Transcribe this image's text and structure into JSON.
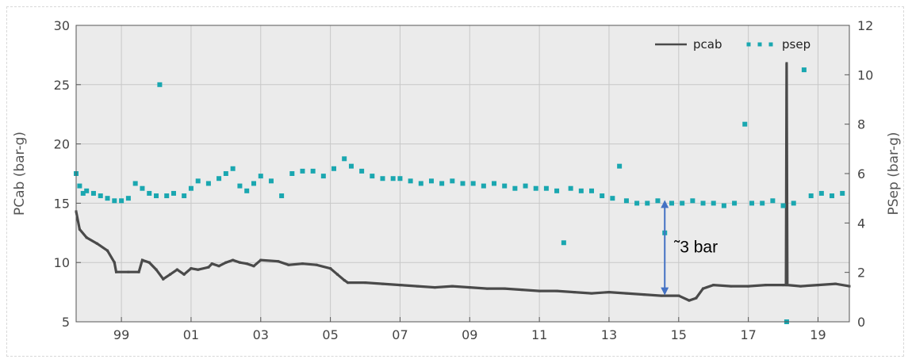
{
  "chart_data": {
    "type": "line",
    "xlabel": "",
    "x_tick_labels": [
      "99",
      "01",
      "03",
      "05",
      "07",
      "09",
      "11",
      "13",
      "15",
      "17",
      "19"
    ],
    "x_tick_years": [
      1999,
      2001,
      2003,
      2005,
      2007,
      2009,
      2011,
      2013,
      2015,
      2017,
      2019
    ],
    "xlim": [
      1997.7,
      2019.9
    ],
    "ylabel_left": "PCab (bar-g)",
    "ylim_left": [
      5,
      30
    ],
    "yticks_left": [
      "5",
      "10",
      "15",
      "20",
      "25",
      "30"
    ],
    "ylabel_right": "PSep (bar-g)",
    "ylim_right": [
      0,
      12
    ],
    "yticks_right": [
      "0",
      "2",
      "4",
      "6",
      "8",
      "10",
      "12"
    ],
    "grid": true,
    "legend_placement": "top-right",
    "colors": {
      "pcab": "#4a4a4a",
      "psep": "#1aa7b0",
      "annotation": "#4472c4"
    },
    "series": [
      {
        "name": "pcab",
        "axis": "left",
        "style": "line",
        "points": [
          [
            1997.7,
            14.3
          ],
          [
            1997.8,
            12.8
          ],
          [
            1998.0,
            12.1
          ],
          [
            1998.3,
            11.6
          ],
          [
            1998.6,
            11.0
          ],
          [
            1998.8,
            10.0
          ],
          [
            1998.85,
            9.2
          ],
          [
            1999.2,
            9.2
          ],
          [
            1999.5,
            9.2
          ],
          [
            1999.6,
            10.2
          ],
          [
            1999.8,
            10.0
          ],
          [
            2000.0,
            9.4
          ],
          [
            2000.2,
            8.6
          ],
          [
            2000.4,
            9.0
          ],
          [
            2000.6,
            9.4
          ],
          [
            2000.8,
            9.0
          ],
          [
            2001.0,
            9.5
          ],
          [
            2001.2,
            9.4
          ],
          [
            2001.5,
            9.6
          ],
          [
            2001.6,
            9.9
          ],
          [
            2001.8,
            9.7
          ],
          [
            2002.0,
            10.0
          ],
          [
            2002.2,
            10.2
          ],
          [
            2002.4,
            10.0
          ],
          [
            2002.6,
            9.9
          ],
          [
            2002.8,
            9.7
          ],
          [
            2003.0,
            10.2
          ],
          [
            2003.5,
            10.1
          ],
          [
            2003.8,
            9.8
          ],
          [
            2004.2,
            9.9
          ],
          [
            2004.6,
            9.8
          ],
          [
            2005.0,
            9.5
          ],
          [
            2005.2,
            9.0
          ],
          [
            2005.4,
            8.5
          ],
          [
            2005.5,
            8.3
          ],
          [
            2006.0,
            8.3
          ],
          [
            2006.5,
            8.2
          ],
          [
            2007.0,
            8.1
          ],
          [
            2007.5,
            8.0
          ],
          [
            2008.0,
            7.9
          ],
          [
            2008.5,
            8.0
          ],
          [
            2009.0,
            7.9
          ],
          [
            2009.5,
            7.8
          ],
          [
            2010.0,
            7.8
          ],
          [
            2010.5,
            7.7
          ],
          [
            2011.0,
            7.6
          ],
          [
            2011.5,
            7.6
          ],
          [
            2012.0,
            7.5
          ],
          [
            2012.5,
            7.4
          ],
          [
            2013.0,
            7.5
          ],
          [
            2013.5,
            7.4
          ],
          [
            2014.0,
            7.3
          ],
          [
            2014.5,
            7.2
          ],
          [
            2015.0,
            7.2
          ],
          [
            2015.3,
            6.8
          ],
          [
            2015.5,
            7.0
          ],
          [
            2015.7,
            7.8
          ],
          [
            2016.0,
            8.1
          ],
          [
            2016.5,
            8.0
          ],
          [
            2017.0,
            8.0
          ],
          [
            2017.5,
            8.1
          ],
          [
            2018.0,
            8.1
          ],
          [
            2018.08,
            8.1
          ],
          [
            2018.1,
            26.8
          ],
          [
            2018.12,
            8.1
          ],
          [
            2018.5,
            8.0
          ],
          [
            2019.0,
            8.1
          ],
          [
            2019.5,
            8.2
          ],
          [
            2019.9,
            8.0
          ]
        ]
      },
      {
        "name": "psep",
        "axis": "right",
        "style": "scatter",
        "points": [
          [
            1997.7,
            6.0
          ],
          [
            1997.8,
            5.5
          ],
          [
            1997.9,
            5.2
          ],
          [
            1998.0,
            5.3
          ],
          [
            1998.2,
            5.2
          ],
          [
            1998.4,
            5.1
          ],
          [
            1998.6,
            5.0
          ],
          [
            1998.8,
            4.9
          ],
          [
            1999.0,
            4.9
          ],
          [
            1999.2,
            5.0
          ],
          [
            1999.4,
            5.6
          ],
          [
            1999.6,
            5.4
          ],
          [
            1999.8,
            5.2
          ],
          [
            2000.0,
            5.1
          ],
          [
            2000.1,
            9.6
          ],
          [
            2000.3,
            5.1
          ],
          [
            2000.5,
            5.2
          ],
          [
            2000.8,
            5.1
          ],
          [
            2001.0,
            5.4
          ],
          [
            2001.2,
            5.7
          ],
          [
            2001.5,
            5.6
          ],
          [
            2001.8,
            5.8
          ],
          [
            2002.0,
            6.0
          ],
          [
            2002.2,
            6.2
          ],
          [
            2002.4,
            5.5
          ],
          [
            2002.6,
            5.3
          ],
          [
            2002.8,
            5.6
          ],
          [
            2003.0,
            5.9
          ],
          [
            2003.3,
            5.7
          ],
          [
            2003.6,
            5.1
          ],
          [
            2003.9,
            6.0
          ],
          [
            2004.2,
            6.1
          ],
          [
            2004.5,
            6.1
          ],
          [
            2004.8,
            5.9
          ],
          [
            2005.1,
            6.2
          ],
          [
            2005.4,
            6.6
          ],
          [
            2005.6,
            6.3
          ],
          [
            2005.9,
            6.1
          ],
          [
            2006.2,
            5.9
          ],
          [
            2006.5,
            5.8
          ],
          [
            2006.8,
            5.8
          ],
          [
            2007.0,
            5.8
          ],
          [
            2007.3,
            5.7
          ],
          [
            2007.6,
            5.6
          ],
          [
            2007.9,
            5.7
          ],
          [
            2008.2,
            5.6
          ],
          [
            2008.5,
            5.7
          ],
          [
            2008.8,
            5.6
          ],
          [
            2009.1,
            5.6
          ],
          [
            2009.4,
            5.5
          ],
          [
            2009.7,
            5.6
          ],
          [
            2010.0,
            5.5
          ],
          [
            2010.3,
            5.4
          ],
          [
            2010.6,
            5.5
          ],
          [
            2010.9,
            5.4
          ],
          [
            2011.2,
            5.4
          ],
          [
            2011.5,
            5.3
          ],
          [
            2011.7,
            3.2
          ],
          [
            2011.9,
            5.4
          ],
          [
            2012.2,
            5.3
          ],
          [
            2012.5,
            5.3
          ],
          [
            2012.8,
            5.1
          ],
          [
            2013.1,
            5.0
          ],
          [
            2013.3,
            6.3
          ],
          [
            2013.5,
            4.9
          ],
          [
            2013.8,
            4.8
          ],
          [
            2014.1,
            4.8
          ],
          [
            2014.4,
            4.9
          ],
          [
            2014.6,
            3.6
          ],
          [
            2014.8,
            4.8
          ],
          [
            2015.1,
            4.8
          ],
          [
            2015.4,
            4.9
          ],
          [
            2015.7,
            4.8
          ],
          [
            2016.0,
            4.8
          ],
          [
            2016.3,
            4.7
          ],
          [
            2016.6,
            4.8
          ],
          [
            2016.9,
            8.0
          ],
          [
            2017.1,
            4.8
          ],
          [
            2017.4,
            4.8
          ],
          [
            2017.7,
            4.9
          ],
          [
            2018.0,
            4.7
          ],
          [
            2018.1,
            0.0
          ],
          [
            2018.3,
            4.8
          ],
          [
            2018.6,
            10.2
          ],
          [
            2018.8,
            5.1
          ],
          [
            2019.1,
            5.2
          ],
          [
            2019.4,
            5.1
          ],
          [
            2019.7,
            5.2
          ]
        ]
      }
    ],
    "annotation": {
      "text": "˜3 bar",
      "x": 2014.6,
      "y_top_left": 15.2,
      "y_bottom_left": 7.3
    }
  }
}
